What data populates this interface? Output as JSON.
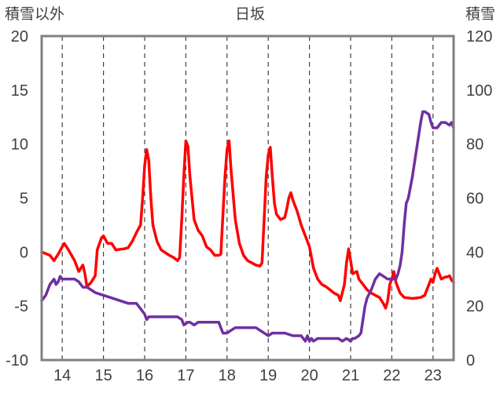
{
  "chart_data": {
    "type": "line",
    "title": "日坂",
    "ylabel_left": "積雪以外",
    "ylabel_right": "積雪",
    "ylim_left": [
      -10,
      20
    ],
    "ylim_right": [
      0,
      120
    ],
    "yticks_left": [
      "-10",
      "-5",
      "0",
      "5",
      "10",
      "15",
      "20"
    ],
    "yticks_right": [
      "0",
      "20",
      "40",
      "60",
      "80",
      "100",
      "120"
    ],
    "xlim": [
      13.5,
      23.5
    ],
    "xticks": [
      "14",
      "15",
      "16",
      "17",
      "18",
      "19",
      "20",
      "21",
      "22",
      "23"
    ],
    "grid": "vertical-dashed",
    "series": [
      {
        "axis": "left",
        "color": "#ff0000",
        "points": [
          [
            13.5,
            0
          ],
          [
            13.7,
            -0.3
          ],
          [
            13.8,
            -0.8
          ],
          [
            13.9,
            -0.2
          ],
          [
            14.0,
            0.5
          ],
          [
            14.05,
            0.8
          ],
          [
            14.15,
            0.2
          ],
          [
            14.3,
            -0.8
          ],
          [
            14.4,
            -1.8
          ],
          [
            14.5,
            -1.2
          ],
          [
            14.55,
            -2.0
          ],
          [
            14.6,
            -3.2
          ],
          [
            14.7,
            -2.8
          ],
          [
            14.8,
            -2.2
          ],
          [
            14.85,
            0.2
          ],
          [
            14.95,
            1.3
          ],
          [
            15.0,
            1.5
          ],
          [
            15.1,
            0.8
          ],
          [
            15.2,
            0.8
          ],
          [
            15.3,
            0.2
          ],
          [
            15.5,
            0.3
          ],
          [
            15.6,
            0.4
          ],
          [
            15.7,
            1.0
          ],
          [
            15.8,
            1.8
          ],
          [
            15.9,
            2.5
          ],
          [
            15.95,
            5.0
          ],
          [
            16.0,
            8.0
          ],
          [
            16.05,
            9.5
          ],
          [
            16.1,
            8.5
          ],
          [
            16.15,
            5.0
          ],
          [
            16.2,
            2.5
          ],
          [
            16.3,
            1.0
          ],
          [
            16.4,
            0.2
          ],
          [
            16.6,
            -0.3
          ],
          [
            16.7,
            -0.5
          ],
          [
            16.8,
            -0.8
          ],
          [
            16.85,
            -0.5
          ],
          [
            16.9,
            3.0
          ],
          [
            16.95,
            7.0
          ],
          [
            17.0,
            10.3
          ],
          [
            17.05,
            9.8
          ],
          [
            17.1,
            7.0
          ],
          [
            17.2,
            3.0
          ],
          [
            17.3,
            2.0
          ],
          [
            17.4,
            1.5
          ],
          [
            17.5,
            0.5
          ],
          [
            17.6,
            0.2
          ],
          [
            17.7,
            -0.3
          ],
          [
            17.8,
            -0.3
          ],
          [
            17.85,
            -0.2
          ],
          [
            17.9,
            3.5
          ],
          [
            17.95,
            7.0
          ],
          [
            18.0,
            9.5
          ],
          [
            18.05,
            10.3
          ],
          [
            18.1,
            7.5
          ],
          [
            18.2,
            3.0
          ],
          [
            18.3,
            0.8
          ],
          [
            18.4,
            -0.3
          ],
          [
            18.5,
            -0.8
          ],
          [
            18.6,
            -1.0
          ],
          [
            18.7,
            -1.2
          ],
          [
            18.8,
            -1.3
          ],
          [
            18.85,
            -1.0
          ],
          [
            18.9,
            3.0
          ],
          [
            18.95,
            7.0
          ],
          [
            19.0,
            9.0
          ],
          [
            19.05,
            9.7
          ],
          [
            19.1,
            7.0
          ],
          [
            19.15,
            4.5
          ],
          [
            19.2,
            3.5
          ],
          [
            19.3,
            3.0
          ],
          [
            19.4,
            3.2
          ],
          [
            19.45,
            4.0
          ],
          [
            19.5,
            5.0
          ],
          [
            19.55,
            5.5
          ],
          [
            19.6,
            4.8
          ],
          [
            19.7,
            3.8
          ],
          [
            19.8,
            2.5
          ],
          [
            19.9,
            1.5
          ],
          [
            20.0,
            0.5
          ],
          [
            20.1,
            -1.5
          ],
          [
            20.2,
            -2.5
          ],
          [
            20.3,
            -3.0
          ],
          [
            20.4,
            -3.2
          ],
          [
            20.5,
            -3.5
          ],
          [
            20.6,
            -3.8
          ],
          [
            20.7,
            -4.0
          ],
          [
            20.75,
            -4.5
          ],
          [
            20.85,
            -3.0
          ],
          [
            20.9,
            -1.0
          ],
          [
            20.95,
            0.3
          ],
          [
            21.0,
            -0.8
          ],
          [
            21.05,
            -2.0
          ],
          [
            21.15,
            -1.8
          ],
          [
            21.2,
            -2.5
          ],
          [
            21.3,
            -3.0
          ],
          [
            21.4,
            -3.5
          ],
          [
            21.5,
            -3.8
          ],
          [
            21.6,
            -4.0
          ],
          [
            21.7,
            -4.2
          ],
          [
            21.8,
            -4.8
          ],
          [
            21.85,
            -5.2
          ],
          [
            21.9,
            -4.5
          ],
          [
            21.95,
            -3.0
          ],
          [
            22.0,
            -2.5
          ],
          [
            22.05,
            -1.8
          ],
          [
            22.1,
            -2.8
          ],
          [
            22.2,
            -3.8
          ],
          [
            22.3,
            -4.2
          ],
          [
            22.5,
            -4.3
          ],
          [
            22.7,
            -4.2
          ],
          [
            22.8,
            -4.0
          ],
          [
            22.85,
            -3.5
          ],
          [
            22.9,
            -3.0
          ],
          [
            22.95,
            -2.5
          ],
          [
            23.0,
            -2.8
          ],
          [
            23.05,
            -2.0
          ],
          [
            23.1,
            -1.5
          ],
          [
            23.2,
            -2.5
          ],
          [
            23.3,
            -2.3
          ],
          [
            23.35,
            -2.3
          ],
          [
            23.4,
            -2.2
          ],
          [
            23.45,
            -2.6
          ],
          [
            23.5,
            -2.8
          ]
        ]
      },
      {
        "axis": "right",
        "color": "#7030a0",
        "points": [
          [
            13.5,
            22
          ],
          [
            13.6,
            24
          ],
          [
            13.7,
            28
          ],
          [
            13.8,
            30
          ],
          [
            13.85,
            28
          ],
          [
            13.9,
            29
          ],
          [
            13.95,
            31
          ],
          [
            14.0,
            30
          ],
          [
            14.05,
            30
          ],
          [
            14.2,
            30
          ],
          [
            14.3,
            30
          ],
          [
            14.4,
            29
          ],
          [
            14.5,
            27
          ],
          [
            14.6,
            27
          ],
          [
            14.7,
            26
          ],
          [
            14.8,
            25
          ],
          [
            15.0,
            24
          ],
          [
            15.2,
            23
          ],
          [
            15.4,
            22
          ],
          [
            15.6,
            21
          ],
          [
            15.8,
            21
          ],
          [
            15.9,
            19
          ],
          [
            16.0,
            17
          ],
          [
            16.05,
            15
          ],
          [
            16.1,
            16
          ],
          [
            16.2,
            16
          ],
          [
            16.4,
            16
          ],
          [
            16.6,
            16
          ],
          [
            16.8,
            16
          ],
          [
            16.9,
            15
          ],
          [
            16.95,
            13
          ],
          [
            17.05,
            14
          ],
          [
            17.1,
            14
          ],
          [
            17.2,
            13
          ],
          [
            17.3,
            14
          ],
          [
            17.5,
            14
          ],
          [
            17.7,
            14
          ],
          [
            17.8,
            14
          ],
          [
            17.85,
            12
          ],
          [
            17.9,
            10
          ],
          [
            18.0,
            10
          ],
          [
            18.1,
            11
          ],
          [
            18.2,
            12
          ],
          [
            18.4,
            12
          ],
          [
            18.6,
            12
          ],
          [
            18.7,
            12
          ],
          [
            18.8,
            11
          ],
          [
            18.9,
            10
          ],
          [
            19.0,
            9
          ],
          [
            19.1,
            10
          ],
          [
            19.2,
            10
          ],
          [
            19.4,
            10
          ],
          [
            19.6,
            9
          ],
          [
            19.8,
            9
          ],
          [
            19.85,
            8
          ],
          [
            19.9,
            7
          ],
          [
            19.95,
            9
          ],
          [
            20.0,
            7
          ],
          [
            20.05,
            8
          ],
          [
            20.1,
            7
          ],
          [
            20.2,
            8
          ],
          [
            20.4,
            8
          ],
          [
            20.6,
            8
          ],
          [
            20.7,
            8
          ],
          [
            20.8,
            7
          ],
          [
            20.9,
            8
          ],
          [
            21.0,
            7
          ],
          [
            21.05,
            8
          ],
          [
            21.1,
            8
          ],
          [
            21.2,
            9
          ],
          [
            21.25,
            10
          ],
          [
            21.3,
            15
          ],
          [
            21.35,
            20
          ],
          [
            21.4,
            23
          ],
          [
            21.5,
            26
          ],
          [
            21.6,
            30
          ],
          [
            21.7,
            32
          ],
          [
            21.8,
            31
          ],
          [
            21.9,
            30
          ],
          [
            22.0,
            30
          ],
          [
            22.1,
            30
          ],
          [
            22.15,
            32
          ],
          [
            22.2,
            35
          ],
          [
            22.25,
            40
          ],
          [
            22.3,
            50
          ],
          [
            22.35,
            58
          ],
          [
            22.4,
            60
          ],
          [
            22.5,
            68
          ],
          [
            22.6,
            78
          ],
          [
            22.7,
            88
          ],
          [
            22.75,
            92
          ],
          [
            22.8,
            92
          ],
          [
            22.9,
            91
          ],
          [
            22.95,
            88
          ],
          [
            23.0,
            86
          ],
          [
            23.1,
            86
          ],
          [
            23.2,
            88
          ],
          [
            23.3,
            88
          ],
          [
            23.4,
            87
          ],
          [
            23.45,
            88
          ],
          [
            23.5,
            86
          ]
        ]
      }
    ]
  }
}
